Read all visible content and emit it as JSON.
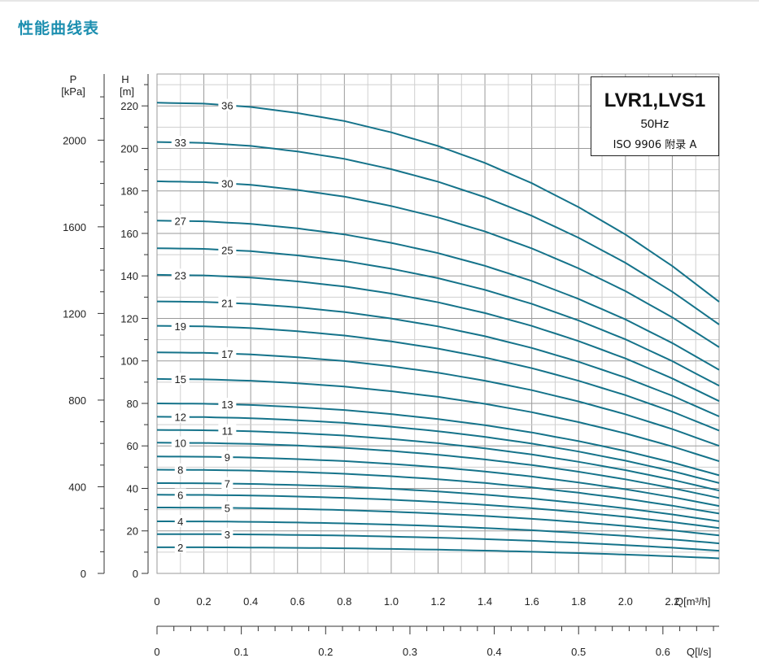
{
  "page": {
    "title": "性能曲线表"
  },
  "legend": {
    "model": "LVR1,LVS1",
    "frequency": "50Hz",
    "standard": "ISO 9906  附录 A"
  },
  "colors": {
    "curve": "#15738a",
    "grid": "#cfcfcf",
    "grid_major": "#9a9a9a",
    "axis": "#333333",
    "title": "#1d8fb0"
  },
  "chart_data": {
    "type": "line",
    "title": "",
    "h_axis": {
      "label_top": "H",
      "unit": "[m]",
      "ticks": [
        0,
        20,
        40,
        60,
        80,
        100,
        120,
        140,
        160,
        180,
        200,
        220
      ],
      "range": [
        0,
        235
      ]
    },
    "p_axis": {
      "label_top": "P",
      "unit": "[kPa]",
      "ticks": [
        0,
        400,
        800,
        1200,
        1600,
        2000
      ],
      "range_kpa": [
        0,
        2305
      ]
    },
    "q_m3h_axis": {
      "label": "Q[m³/h]",
      "ticks": [
        "0",
        "0.2",
        "0.4",
        "0.6",
        "0.8",
        "1.0",
        "1.2",
        "1.4",
        "1.6",
        "1.8",
        "2.0",
        "2.2"
      ],
      "range": [
        0,
        2.4
      ]
    },
    "q_ls_axis": {
      "label": "Q[l/s]",
      "ticks": [
        "0",
        "0.1",
        "0.2",
        "0.3",
        "0.4",
        "0.5",
        "0.6"
      ],
      "range": [
        0,
        0.6667
      ]
    },
    "flow_shape": [
      0.0,
      0.002,
      0.009,
      0.022,
      0.039,
      0.063,
      0.092,
      0.128,
      0.171,
      0.222,
      0.28,
      0.347,
      0.423
    ],
    "flow_points": [
      0,
      0.2,
      0.4,
      0.6,
      0.8,
      1.0,
      1.2,
      1.4,
      1.6,
      1.8,
      2.0,
      2.2,
      2.4
    ],
    "series": [
      {
        "name": "2",
        "h0": 12.3,
        "label_x": 0.1
      },
      {
        "name": "3",
        "h0": 18.5,
        "label_x": 0.3
      },
      {
        "name": "4",
        "h0": 24.5,
        "label_x": 0.1
      },
      {
        "name": "5",
        "h0": 31.0,
        "label_x": 0.3
      },
      {
        "name": "6",
        "h0": 37.0,
        "label_x": 0.1
      },
      {
        "name": "7",
        "h0": 42.5,
        "label_x": 0.3
      },
      {
        "name": "8",
        "h0": 48.8,
        "label_x": 0.1
      },
      {
        "name": "9",
        "h0": 55.0,
        "label_x": 0.3
      },
      {
        "name": "10",
        "h0": 61.5,
        "label_x": 0.1
      },
      {
        "name": "11",
        "h0": 67.5,
        "label_x": 0.3
      },
      {
        "name": "12",
        "h0": 73.7,
        "label_x": 0.1
      },
      {
        "name": "13",
        "h0": 80.0,
        "label_x": 0.3
      },
      {
        "name": "15",
        "h0": 91.5,
        "label_x": 0.1
      },
      {
        "name": "17",
        "h0": 104.0,
        "label_x": 0.3
      },
      {
        "name": "19",
        "h0": 116.5,
        "label_x": 0.1
      },
      {
        "name": "21",
        "h0": 128.0,
        "label_x": 0.3
      },
      {
        "name": "23",
        "h0": 140.5,
        "label_x": 0.1
      },
      {
        "name": "25",
        "h0": 153.0,
        "label_x": 0.3
      },
      {
        "name": "27",
        "h0": 166.0,
        "label_x": 0.1
      },
      {
        "name": "30",
        "h0": 184.5,
        "label_x": 0.3
      },
      {
        "name": "33",
        "h0": 203.0,
        "label_x": 0.1
      },
      {
        "name": "36",
        "h0": 221.5,
        "label_x": 0.3
      }
    ],
    "grid": true,
    "legend_position": "top-right"
  }
}
